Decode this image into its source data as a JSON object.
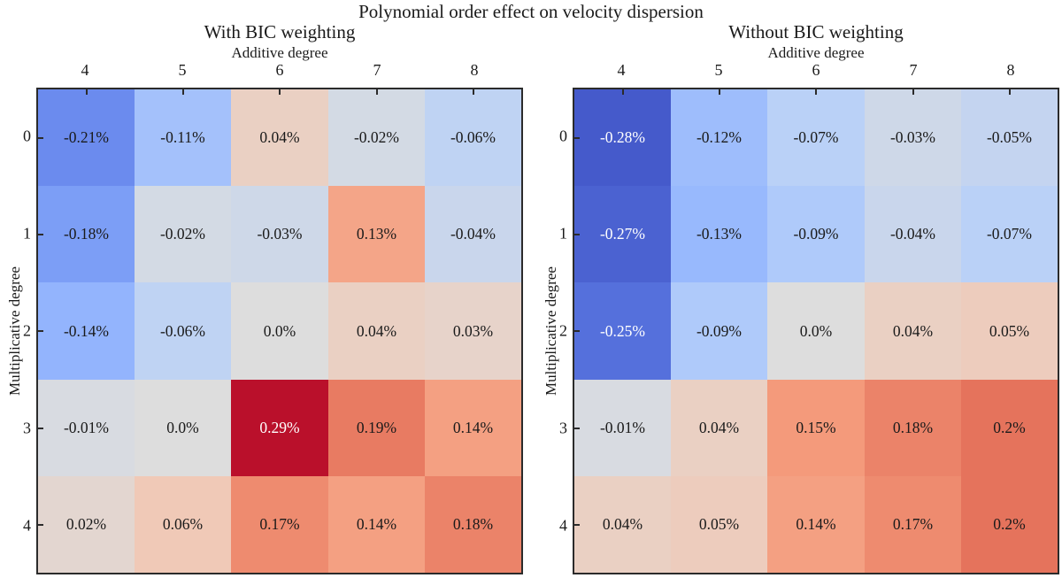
{
  "title": "Polynomial order effect on velocity dispersion",
  "color_scale": {
    "name": "coolwarm",
    "vmin": -0.3,
    "vmax": 0.3,
    "min_color": "#3b4cc0",
    "mid_color": "#dddddd",
    "max_color": "#b40426",
    "white_text_threshold": 0.25
  },
  "chart_data": [
    {
      "type": "heatmap",
      "title": "With BIC weighting",
      "xlabel": "Additive degree",
      "ylabel": "Multiplicative degree",
      "x_ticks": [
        "4",
        "5",
        "6",
        "7",
        "8"
      ],
      "y_ticks": [
        "0",
        "1",
        "2",
        "3",
        "4"
      ],
      "values": [
        [
          -0.21,
          -0.11,
          0.04,
          -0.02,
          -0.06
        ],
        [
          -0.18,
          -0.02,
          -0.03,
          0.13,
          -0.04
        ],
        [
          -0.14,
          -0.06,
          0.0,
          0.04,
          0.03
        ],
        [
          -0.01,
          0.0,
          0.29,
          0.19,
          0.14
        ],
        [
          0.02,
          0.06,
          0.17,
          0.14,
          0.18
        ]
      ],
      "labels": [
        [
          "-0.21%",
          "-0.11%",
          "0.04%",
          "-0.02%",
          "-0.06%"
        ],
        [
          "-0.18%",
          "-0.02%",
          "-0.03%",
          "0.13%",
          "-0.04%"
        ],
        [
          "-0.14%",
          "-0.06%",
          "0.0%",
          "0.04%",
          "0.03%"
        ],
        [
          "-0.01%",
          "0.0%",
          "0.29%",
          "0.19%",
          "0.14%"
        ],
        [
          "0.02%",
          "0.06%",
          "0.17%",
          "0.14%",
          "0.18%"
        ]
      ]
    },
    {
      "type": "heatmap",
      "title": "Without BIC weighting",
      "xlabel": "Additive degree",
      "ylabel": "Multiplicative degree",
      "x_ticks": [
        "4",
        "5",
        "6",
        "7",
        "8"
      ],
      "y_ticks": [
        "0",
        "1",
        "2",
        "3",
        "4"
      ],
      "values": [
        [
          -0.28,
          -0.12,
          -0.07,
          -0.03,
          -0.05
        ],
        [
          -0.27,
          -0.13,
          -0.09,
          -0.04,
          -0.07
        ],
        [
          -0.25,
          -0.09,
          0.0,
          0.04,
          0.05
        ],
        [
          -0.01,
          0.04,
          0.15,
          0.18,
          0.2
        ],
        [
          0.04,
          0.05,
          0.14,
          0.17,
          0.2
        ]
      ],
      "labels": [
        [
          "-0.28%",
          "-0.12%",
          "-0.07%",
          "-0.03%",
          "-0.05%"
        ],
        [
          "-0.27%",
          "-0.13%",
          "-0.09%",
          "-0.04%",
          "-0.07%"
        ],
        [
          "-0.25%",
          "-0.09%",
          "0.0%",
          "0.04%",
          "0.05%"
        ],
        [
          "-0.01%",
          "0.04%",
          "0.15%",
          "0.18%",
          "0.2%"
        ],
        [
          "0.04%",
          "0.05%",
          "0.14%",
          "0.17%",
          "0.2%"
        ]
      ]
    }
  ]
}
